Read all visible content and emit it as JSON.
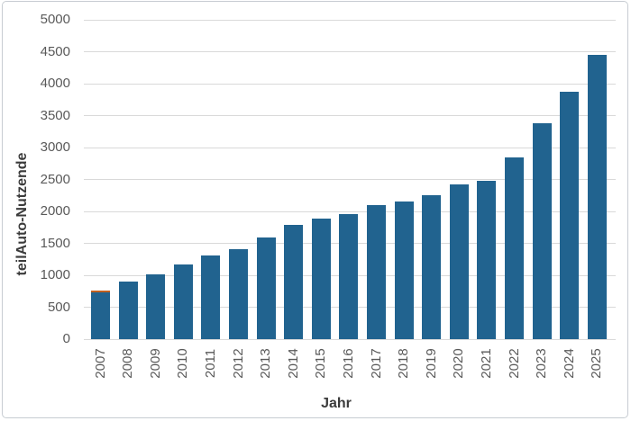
{
  "frame": {
    "background": "#ffffff",
    "border_color": "#c7ccd2"
  },
  "chart_data": {
    "type": "bar",
    "title": "",
    "xlabel": "Jahr",
    "ylabel": "teilAuto-Nutzende",
    "ylim": [
      0,
      5000
    ],
    "ytick_step": 500,
    "yticks": [
      0,
      500,
      1000,
      1500,
      2000,
      2500,
      3000,
      3500,
      4000,
      4500,
      5000
    ],
    "grid": true,
    "legend_position": "none",
    "categories": [
      "2007",
      "2008",
      "2009",
      "2010",
      "2011",
      "2012",
      "2013",
      "2014",
      "2015",
      "2016",
      "2017",
      "2018",
      "2019",
      "2020",
      "2021",
      "2022",
      "2023",
      "2024",
      "2025"
    ],
    "values": [
      760,
      900,
      1020,
      1170,
      1310,
      1405,
      1595,
      1795,
      1890,
      1955,
      2100,
      2150,
      2260,
      2425,
      2475,
      2840,
      3380,
      3870,
      4445
    ],
    "bar_color": "#21638f",
    "grid_color": "#d9d9d9",
    "tick_label_color": "#595959",
    "axis_title_color": "#3b3b3b",
    "first_bar_top_accent": {
      "category": "2007",
      "color": "#c2601f"
    }
  }
}
